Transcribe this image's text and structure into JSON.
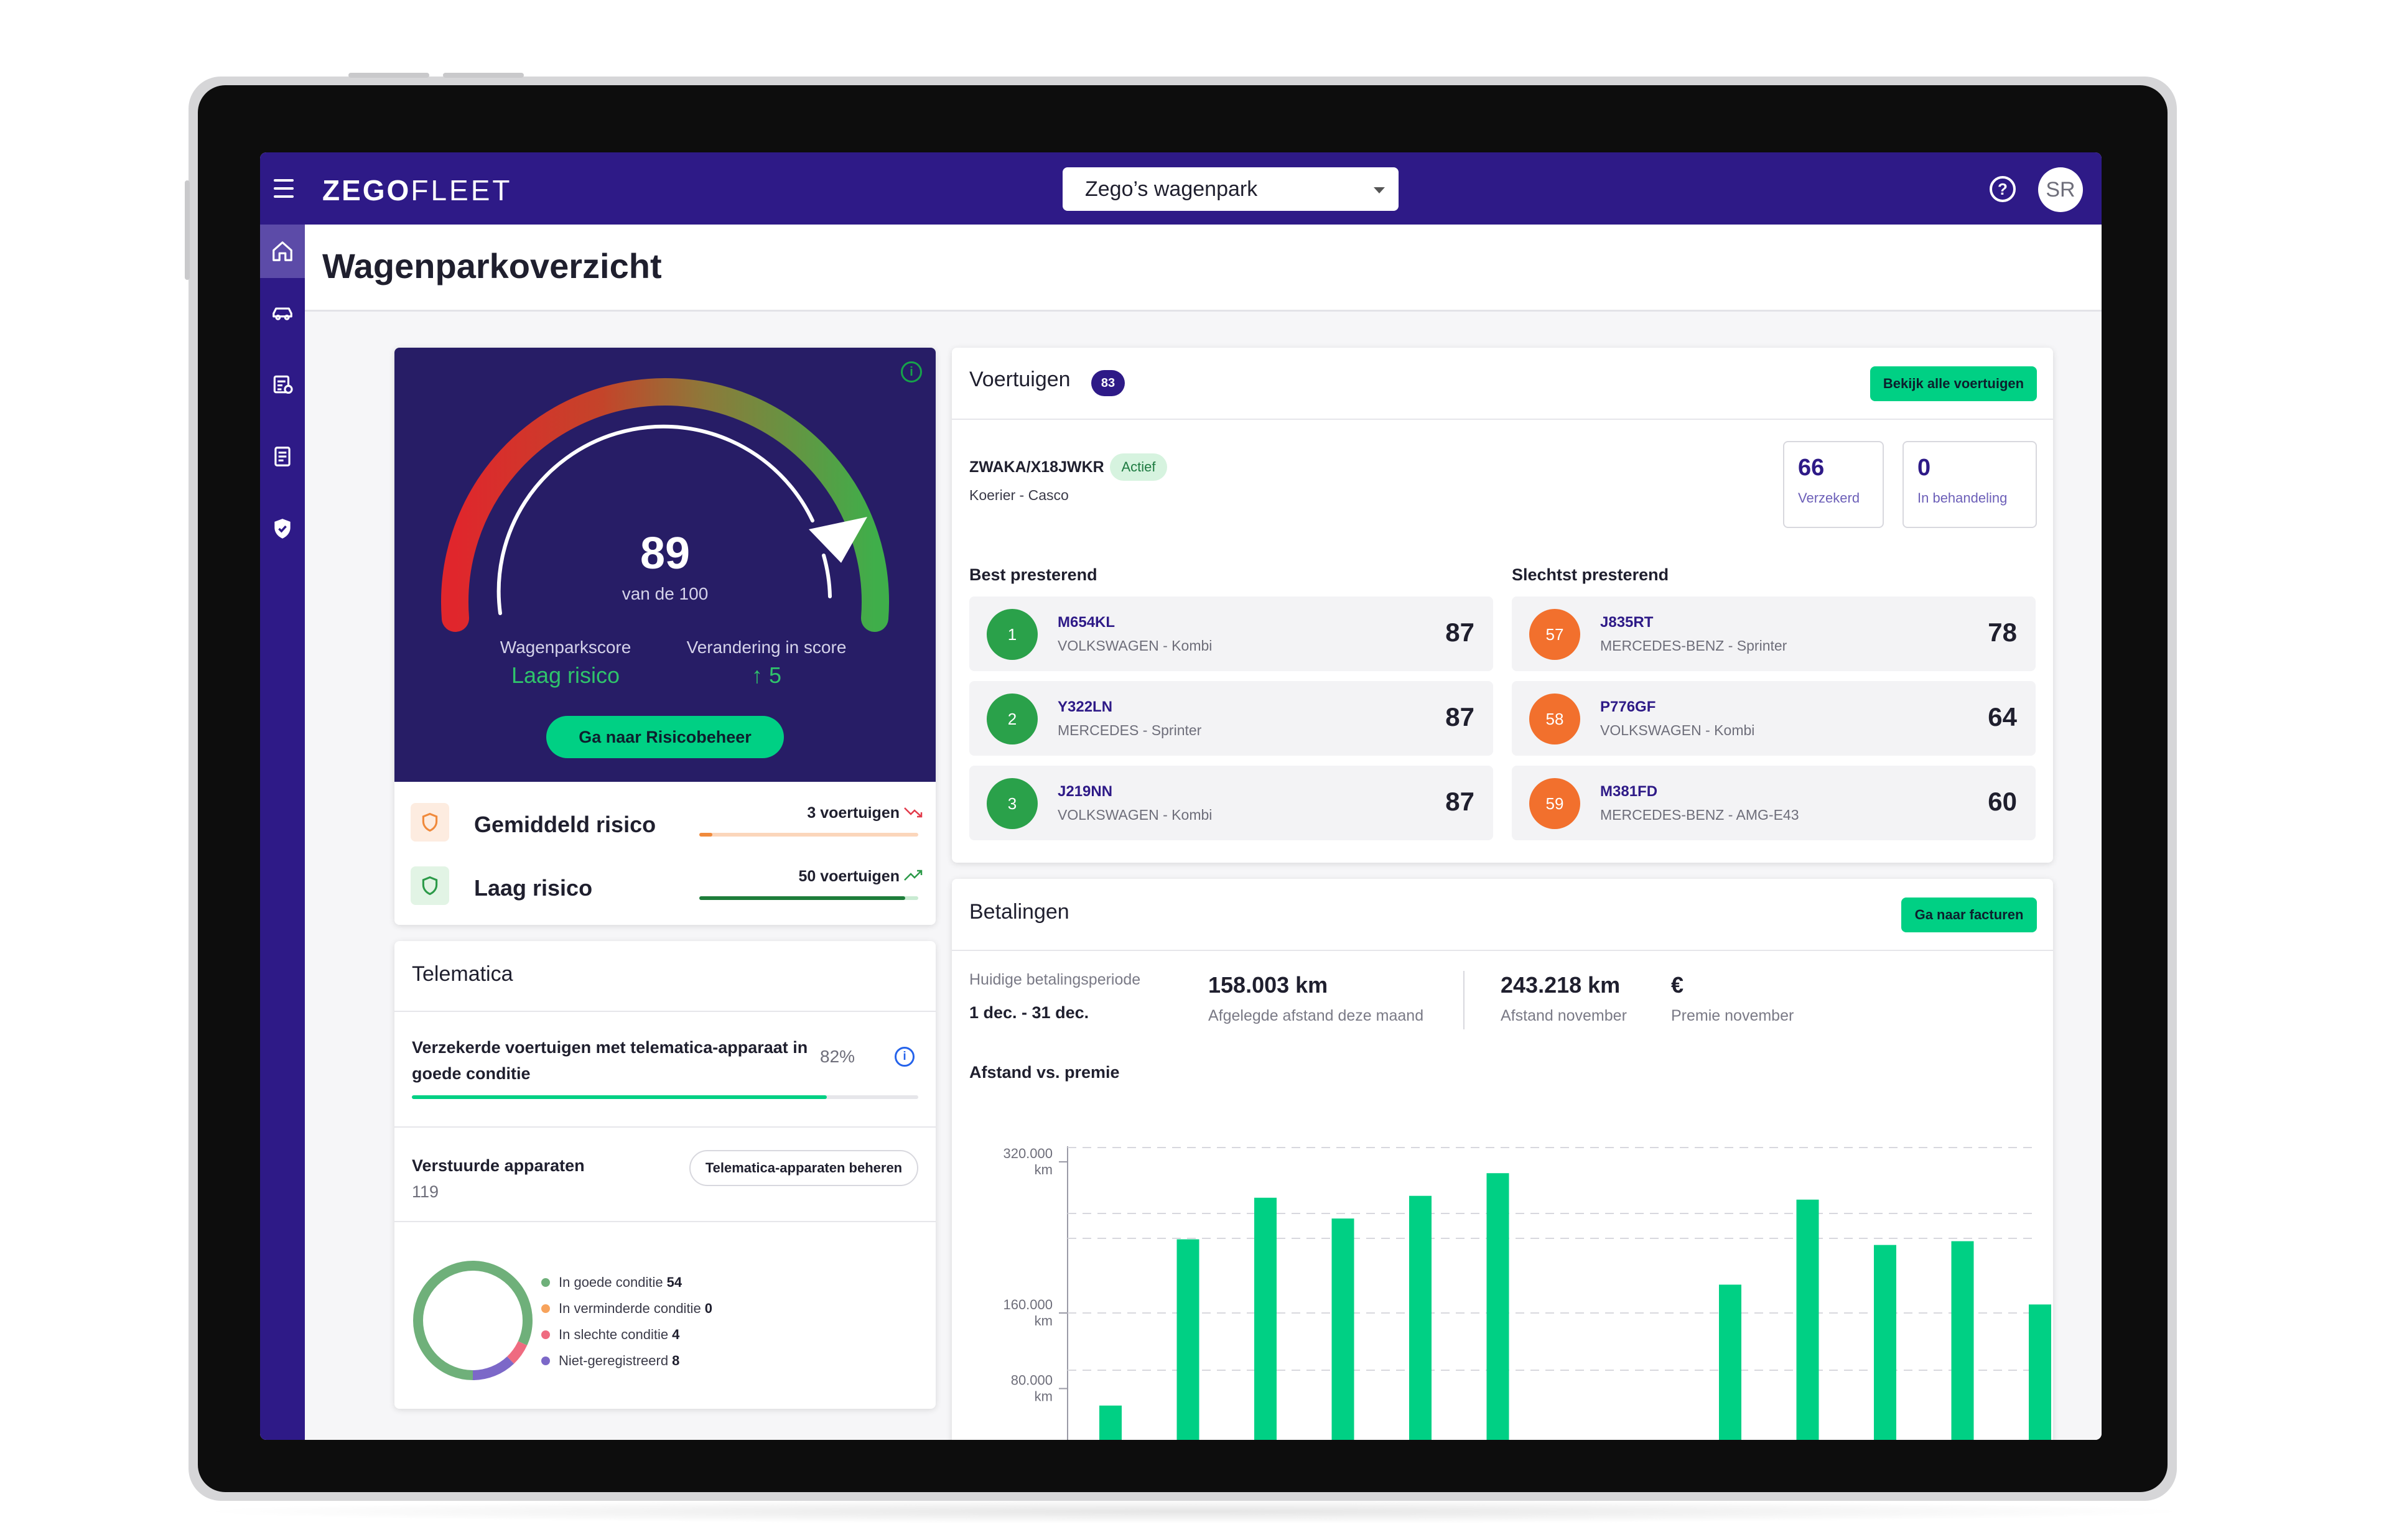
{
  "app": {
    "logo_primary": "ZEGO",
    "logo_secondary": "FLEET",
    "fleet_selector": "Zego’s wagenpark",
    "help_icon": "question-circle-icon",
    "avatar_initials": "SR",
    "brand_color": "#2e1a87",
    "accent_color": "#00d084"
  },
  "sidebar": {
    "items": [
      {
        "icon": "home-icon",
        "active": true
      },
      {
        "icon": "car-icon",
        "active": false
      },
      {
        "icon": "calendar-list-icon",
        "active": false
      },
      {
        "icon": "document-icon",
        "active": false
      },
      {
        "icon": "shield-check-icon",
        "active": false
      }
    ]
  },
  "page": {
    "title": "Wagenparkoverzicht"
  },
  "score": {
    "value": "89",
    "suffix": "van de 100",
    "score_fraction": 0.89,
    "fleet_label": "Wagenparkscore",
    "fleet_value": "Laag risico",
    "change_label": "Verandering in score",
    "change_value": "↑ 5",
    "button": "Ga naar Risicobeheer",
    "risks": [
      {
        "name": "Gemiddeld risico",
        "count": "3 voertuigen",
        "trend": "down",
        "color": "#f7973c",
        "fill": 0.06
      },
      {
        "name": "Laag risico",
        "count": "50 voertuigen",
        "trend": "up",
        "color": "#1e9e4a",
        "fill": 0.94
      }
    ]
  },
  "telematica": {
    "title": "Telematica",
    "description": "Verzekerde voertuigen met telematica-apparaat in goede conditie",
    "percent": "82%",
    "percent_fraction": 0.82,
    "devices_label": "Verstuurde apparaten",
    "devices_count": "119",
    "devices_button": "Telematica-apparaten beheren",
    "legend": [
      {
        "label": "In goede conditie",
        "value": "54",
        "color": "#6fb07a"
      },
      {
        "label": "In verminderde conditie",
        "value": "0",
        "color": "#f7a35c"
      },
      {
        "label": "In slechte conditie",
        "value": "4",
        "color": "#ef6b80"
      },
      {
        "label": "Niet-geregistreerd",
        "value": "8",
        "color": "#7c68c8"
      }
    ]
  },
  "vehicles": {
    "title": "Voertuigen",
    "count": "83",
    "button": "Bekijk alle voertuigen",
    "featured_plate": "ZWAKA/X18JWKR",
    "featured_status": "Actief",
    "featured_type": "Koerier - Casco",
    "stats": [
      {
        "value": "66",
        "label": "Verzekerd"
      },
      {
        "value": "0",
        "label": "In behandeling"
      }
    ],
    "best_title": "Best presterend",
    "worst_title": "Slechtst presterend",
    "best": [
      {
        "rank": "1",
        "plate": "M654KL",
        "model": "VOLKSWAGEN - Kombi",
        "score": "87"
      },
      {
        "rank": "2",
        "plate": "Y322LN",
        "model": "MERCEDES - Sprinter",
        "score": "87"
      },
      {
        "rank": "3",
        "plate": "J219NN",
        "model": "VOLKSWAGEN - Kombi",
        "score": "87"
      }
    ],
    "worst": [
      {
        "rank": "57",
        "plate": "J835RT",
        "model": "MERCEDES-BENZ - Sprinter",
        "score": "78"
      },
      {
        "rank": "58",
        "plate": "P776GF",
        "model": "VOLKSWAGEN - Kombi",
        "score": "64"
      },
      {
        "rank": "59",
        "plate": "M381FD",
        "model": "MERCEDES-BENZ - AMG-E43",
        "score": "60"
      }
    ]
  },
  "payments": {
    "title": "Betalingen",
    "button": "Ga naar facturen",
    "period_label": "Huidige betalingsperiode",
    "period_value": "1 dec. - 31 dec.",
    "distance_month": "158.003 km",
    "distance_month_label": "Afgelegde afstand deze maand",
    "distance_november": "243.218 km",
    "distance_november_label": "Afstand november",
    "premium_november": "€",
    "premium_november_label": "Premie november",
    "chart_title": "Afstand vs. premie"
  },
  "chart_data": {
    "type": "bar",
    "title": "Afstand vs. premie",
    "yticks": [
      {
        "value": 320000,
        "label": "320.000",
        "unit": "km"
      },
      {
        "value": 160000,
        "label": "160.000",
        "unit": "km"
      },
      {
        "value": 80000,
        "label": "80.000",
        "unit": "km"
      }
    ],
    "ylim": [
      0,
      340000
    ],
    "grid": true,
    "values": [
      62000,
      238000,
      282000,
      260000,
      284000,
      308000,
      null,
      null,
      190000,
      280000,
      232000,
      236000,
      169000
    ],
    "bar_color": "#00d084"
  }
}
